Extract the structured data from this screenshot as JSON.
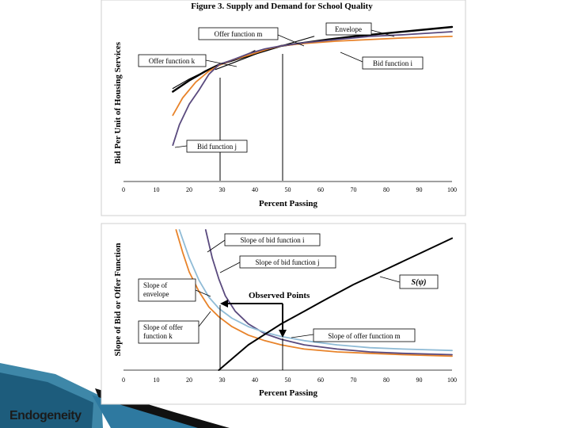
{
  "slide": {
    "footer": "Endogeneity"
  },
  "chart_data": [
    {
      "type": "line",
      "title": "Figure 3.  Supply and Demand for School Quality",
      "xlabel": "Percent Passing",
      "ylabel": "Bid Per Unit of Housing Services",
      "xlim": [
        0,
        100
      ],
      "x_ticks": [
        "0",
        "10",
        "20",
        "30",
        "40",
        "50",
        "60",
        "70",
        "80",
        "90",
        "100"
      ],
      "grid": false,
      "series": [
        {
          "name": "Envelope",
          "color": "#000000",
          "x": [
            15,
            20,
            25,
            29,
            35,
            40,
            48,
            55,
            62,
            70,
            80,
            90,
            100
          ],
          "y": [
            0.57,
            0.64,
            0.7,
            0.74,
            0.78,
            0.81,
            0.86,
            0.88,
            0.9,
            0.92,
            0.94,
            0.96,
            0.98
          ]
        },
        {
          "name": "Offer function m",
          "color": "#000000",
          "x": [
            28,
            33,
            38,
            43,
            48,
            53,
            58
          ],
          "y": [
            0.71,
            0.75,
            0.79,
            0.83,
            0.86,
            0.89,
            0.92
          ]
        },
        {
          "name": "Offer function k",
          "color": "#000000",
          "x": [
            15,
            20,
            25,
            29,
            33,
            37,
            40
          ],
          "y": [
            0.59,
            0.65,
            0.7,
            0.74,
            0.77,
            0.8,
            0.83
          ]
        },
        {
          "name": "Bid function i",
          "color": "#E8832A",
          "x": [
            15,
            18,
            22,
            26,
            29,
            33,
            38,
            44,
            48,
            55,
            65,
            75,
            85,
            100
          ],
          "y": [
            0.42,
            0.53,
            0.63,
            0.7,
            0.735,
            0.77,
            0.8,
            0.84,
            0.86,
            0.875,
            0.89,
            0.9,
            0.91,
            0.92
          ]
        },
        {
          "name": "Bid function j",
          "color": "#5A4A7E",
          "x": [
            15,
            17,
            20,
            23,
            26,
            29,
            33,
            38,
            43,
            48,
            55,
            65,
            75,
            85,
            100
          ],
          "y": [
            0.23,
            0.36,
            0.49,
            0.58,
            0.68,
            0.74,
            0.77,
            0.81,
            0.84,
            0.86,
            0.88,
            0.9,
            0.92,
            0.93,
            0.95
          ]
        }
      ],
      "annotations": [
        "Offer function m",
        "Envelope",
        "Offer function k",
        "Bid function i",
        "Bid function j"
      ]
    },
    {
      "type": "line",
      "xlabel": "Percent Passing",
      "ylabel": "Slope of Bid or Offer Function",
      "xlim": [
        0,
        100
      ],
      "x_ticks": [
        "0",
        "10",
        "20",
        "30",
        "40",
        "50",
        "60",
        "70",
        "80",
        "90",
        "100"
      ],
      "grid": false,
      "series": [
        {
          "name": "Slope of bid function i",
          "color": "#E8832A",
          "x": [
            16,
            18,
            20,
            23,
            26,
            29,
            33,
            38,
            43,
            48,
            55,
            65,
            75,
            85,
            100
          ],
          "y": [
            1.0,
            0.84,
            0.7,
            0.56,
            0.45,
            0.38,
            0.31,
            0.25,
            0.21,
            0.18,
            0.15,
            0.13,
            0.12,
            0.11,
            0.1
          ]
        },
        {
          "name": "Slope of bid function j",
          "color": "#5A4A7E",
          "x": [
            25,
            27,
            29,
            31,
            34,
            38,
            43,
            48,
            55,
            65,
            75,
            85,
            100
          ],
          "y": [
            1.0,
            0.8,
            0.65,
            0.53,
            0.42,
            0.33,
            0.26,
            0.22,
            0.18,
            0.15,
            0.13,
            0.12,
            0.11
          ]
        },
        {
          "name": "Slope of envelope",
          "color": "#8FBBD6",
          "x": [
            17,
            20,
            23,
            26,
            29,
            33,
            38,
            43,
            48,
            55,
            65,
            75,
            85,
            100
          ],
          "y": [
            1.0,
            0.8,
            0.64,
            0.52,
            0.44,
            0.37,
            0.31,
            0.27,
            0.24,
            0.21,
            0.18,
            0.16,
            0.15,
            0.14
          ]
        },
        {
          "name": "S(ψ)",
          "color": "#000000",
          "x": [
            29,
            33,
            38,
            44,
            48,
            55,
            62,
            70,
            80,
            90,
            100
          ],
          "y": [
            0.0,
            0.08,
            0.18,
            0.27,
            0.33,
            0.42,
            0.51,
            0.61,
            0.72,
            0.83,
            0.94
          ]
        }
      ],
      "annotations": [
        "Slope of bid function i",
        "Slope of bid function j",
        "S(ψ)",
        "Slope of envelope",
        "Slope of offer function k",
        "Slope of offer function m"
      ],
      "callout": "Observed Points"
    }
  ]
}
